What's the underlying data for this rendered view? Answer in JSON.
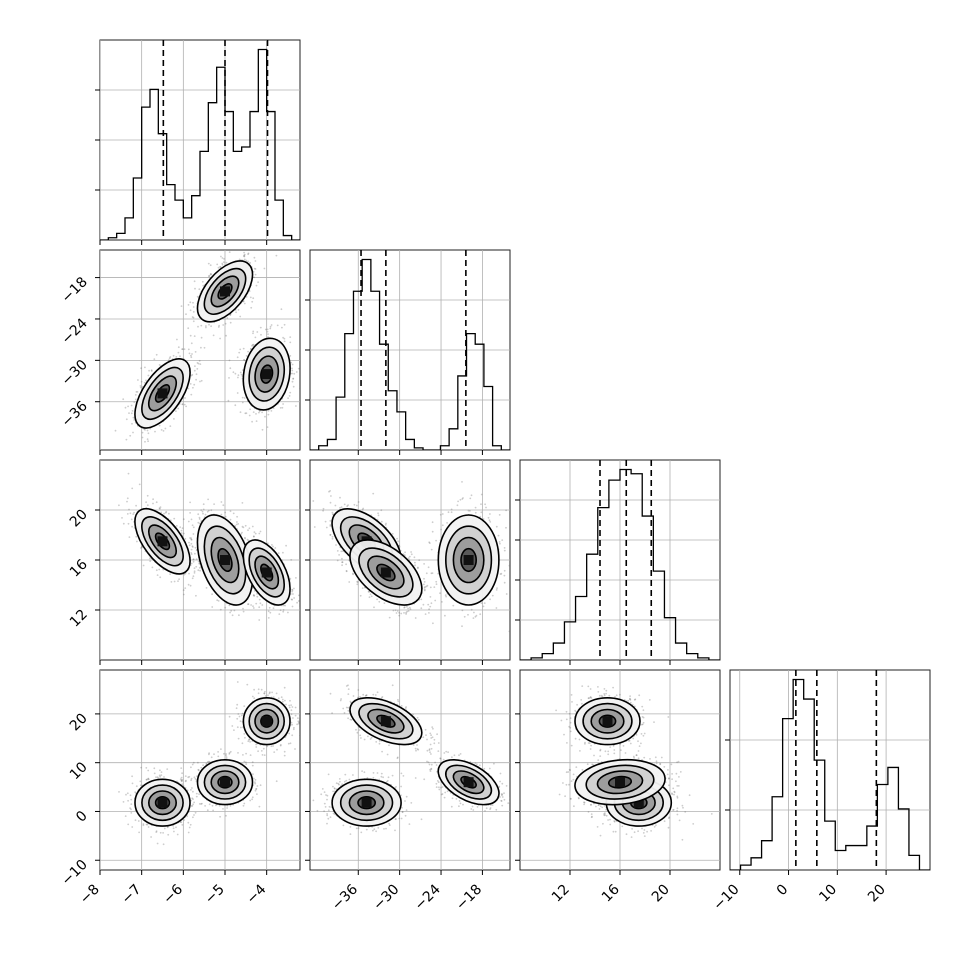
{
  "chart_data": {
    "type": "corner",
    "parameters": [
      {
        "id": "p1",
        "range": [
          -8,
          -3.2
        ],
        "ticks": [
          -8,
          -7,
          -6,
          -5,
          -4
        ],
        "tick_labels": [
          "−8",
          "−7",
          "−6",
          "−5",
          "−4"
        ],
        "hist_density_ticks": [
          0.25,
          0.5,
          0.75
        ],
        "quantiles": [
          -6.48,
          -5.0,
          -3.98
        ],
        "histogram": [
          0.0,
          0.01,
          0.03,
          0.1,
          0.28,
          0.6,
          0.68,
          0.48,
          0.25,
          0.18,
          0.1,
          0.2,
          0.4,
          0.62,
          0.78,
          0.58,
          0.4,
          0.42,
          0.58,
          0.86,
          0.58,
          0.18,
          0.02,
          0.0
        ],
        "modes": [
          {
            "center": -6.5,
            "sigma": 0.33
          },
          {
            "center": -5.0,
            "sigma": 0.33
          },
          {
            "center": -4.0,
            "sigma": 0.28
          }
        ]
      },
      {
        "id": "p2",
        "range": [
          -43,
          -14
        ],
        "ticks": [
          -36,
          -30,
          -24,
          -18
        ],
        "tick_labels": [
          "−36",
          "−30",
          "−24",
          "−18"
        ],
        "hist_density_ticks": [
          0.25,
          0.5,
          0.75
        ],
        "quantiles": [
          -35.6,
          -32.0,
          -20.4
        ],
        "histogram": [
          0.0,
          0.02,
          0.05,
          0.25,
          0.55,
          0.75,
          0.9,
          0.75,
          0.5,
          0.28,
          0.18,
          0.05,
          0.01,
          0.0,
          0.0,
          0.02,
          0.1,
          0.35,
          0.55,
          0.5,
          0.3,
          0.02,
          0.0
        ],
        "modes": [
          {
            "center": -34.2,
            "sigma": 2.2
          },
          {
            "center": -19.8,
            "sigma": 1.4
          }
        ]
      },
      {
        "id": "p3",
        "range": [
          8,
          24
        ],
        "ticks": [
          12,
          16,
          20
        ],
        "tick_labels": [
          "12",
          "16",
          "20"
        ],
        "hist_density_ticks": [
          0.2,
          0.4,
          0.6,
          0.8
        ],
        "quantiles": [
          14.4,
          16.5,
          18.5
        ],
        "histogram": [
          0.0,
          0.01,
          0.03,
          0.08,
          0.18,
          0.3,
          0.5,
          0.72,
          0.85,
          0.9,
          0.88,
          0.68,
          0.42,
          0.2,
          0.08,
          0.03,
          0.01,
          0.0
        ],
        "modes": [
          {
            "center": 16.3,
            "sigma": 1.9
          }
        ]
      },
      {
        "id": "p4",
        "range": [
          -12,
          29
        ],
        "ticks": [
          -10,
          0,
          10,
          20
        ],
        "tick_labels": [
          "−10",
          "0",
          "10",
          "20"
        ],
        "hist_density_ticks": [
          0.3,
          0.65
        ],
        "quantiles": [
          1.5,
          5.8,
          18.0
        ],
        "histogram": [
          0.0,
          0.02,
          0.05,
          0.12,
          0.3,
          0.62,
          0.78,
          0.7,
          0.45,
          0.2,
          0.08,
          0.1,
          0.1,
          0.18,
          0.35,
          0.42,
          0.25,
          0.06,
          0.0
        ],
        "modes": [
          {
            "center": 4.0,
            "sigma": 3.2
          },
          {
            "center": 18.0,
            "sigma": 2.0
          }
        ]
      }
    ],
    "clusters": [
      {
        "means": [
          -6.5,
          -34.8,
          17.5,
          1.8
        ],
        "sds": [
          0.33,
          2.5,
          1.3,
          2.4
        ],
        "rho_pairs": {
          "p1-p2": 0.6,
          "p1-p3": -0.6,
          "p2-p3": -0.55,
          "p1-p4": 0.0,
          "p2-p4": 0.0,
          "p3-p4": 0.0
        }
      },
      {
        "means": [
          -5.0,
          -20.0,
          16.0,
          6.0
        ],
        "sds": [
          0.33,
          2.2,
          1.8,
          2.3
        ],
        "rho_pairs": {
          "p1-p2": 0.55,
          "p1-p3": -0.4,
          "p2-p3": 0.0,
          "p1-p4": 0.0,
          "p2-p4": -0.5,
          "p3-p4": 0.15
        }
      },
      {
        "means": [
          -4.0,
          -32.0,
          15.0,
          18.5
        ],
        "sds": [
          0.28,
          2.6,
          1.3,
          2.4
        ],
        "rho_pairs": {
          "p1-p2": 0.15,
          "p1-p3": -0.5,
          "p2-p3": -0.5,
          "p1-p4": 0.0,
          "p2-p4": -0.5,
          "p3-p4": 0.0
        }
      }
    ],
    "contour_levels_sigma": [
      0.5,
      1.0,
      1.5,
      2.0
    ],
    "grid": true,
    "title": "",
    "legend": "none"
  }
}
